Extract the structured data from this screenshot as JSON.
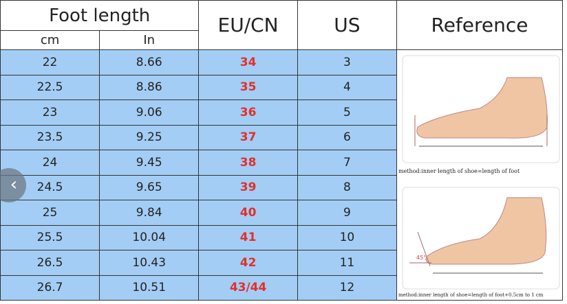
{
  "headers": {
    "foot_length": "Foot length",
    "cm": "cm",
    "in": "In",
    "eu_cn": "EU/CN",
    "us": "US",
    "reference": "Reference"
  },
  "rows": [
    {
      "cm": "22",
      "in": "8.66",
      "eu": "34",
      "us": "3"
    },
    {
      "cm": "22.5",
      "in": "8.86",
      "eu": "35",
      "us": "4"
    },
    {
      "cm": "23",
      "in": "9.06",
      "eu": "36",
      "us": "5"
    },
    {
      "cm": "23.5",
      "in": "9.25",
      "eu": "37",
      "us": "6"
    },
    {
      "cm": "24",
      "in": "9.45",
      "eu": "38",
      "us": "7"
    },
    {
      "cm": "24.5",
      "in": "9.65",
      "eu": "39",
      "us": "8"
    },
    {
      "cm": "25",
      "in": "9.84",
      "eu": "40",
      "us": "9"
    },
    {
      "cm": "25.5",
      "in": "10.04",
      "eu": "41",
      "us": "10"
    },
    {
      "cm": "26.5",
      "in": "10.43",
      "eu": "42",
      "us": "11"
    },
    {
      "cm": "26.7",
      "in": "10.51",
      "eu": "43/44",
      "us": "12"
    }
  ],
  "reference": {
    "caption1": "method:inner length of shoe=length of foot",
    "caption2": "method:inner length of shoe=length of foot+0.5cm to 1 cm",
    "angle": "45°"
  },
  "carousel": {
    "prev_icon": "chevron-left-icon"
  },
  "colors": {
    "row_bg": "#a3cdf4",
    "eu_text": "#e2302a"
  }
}
